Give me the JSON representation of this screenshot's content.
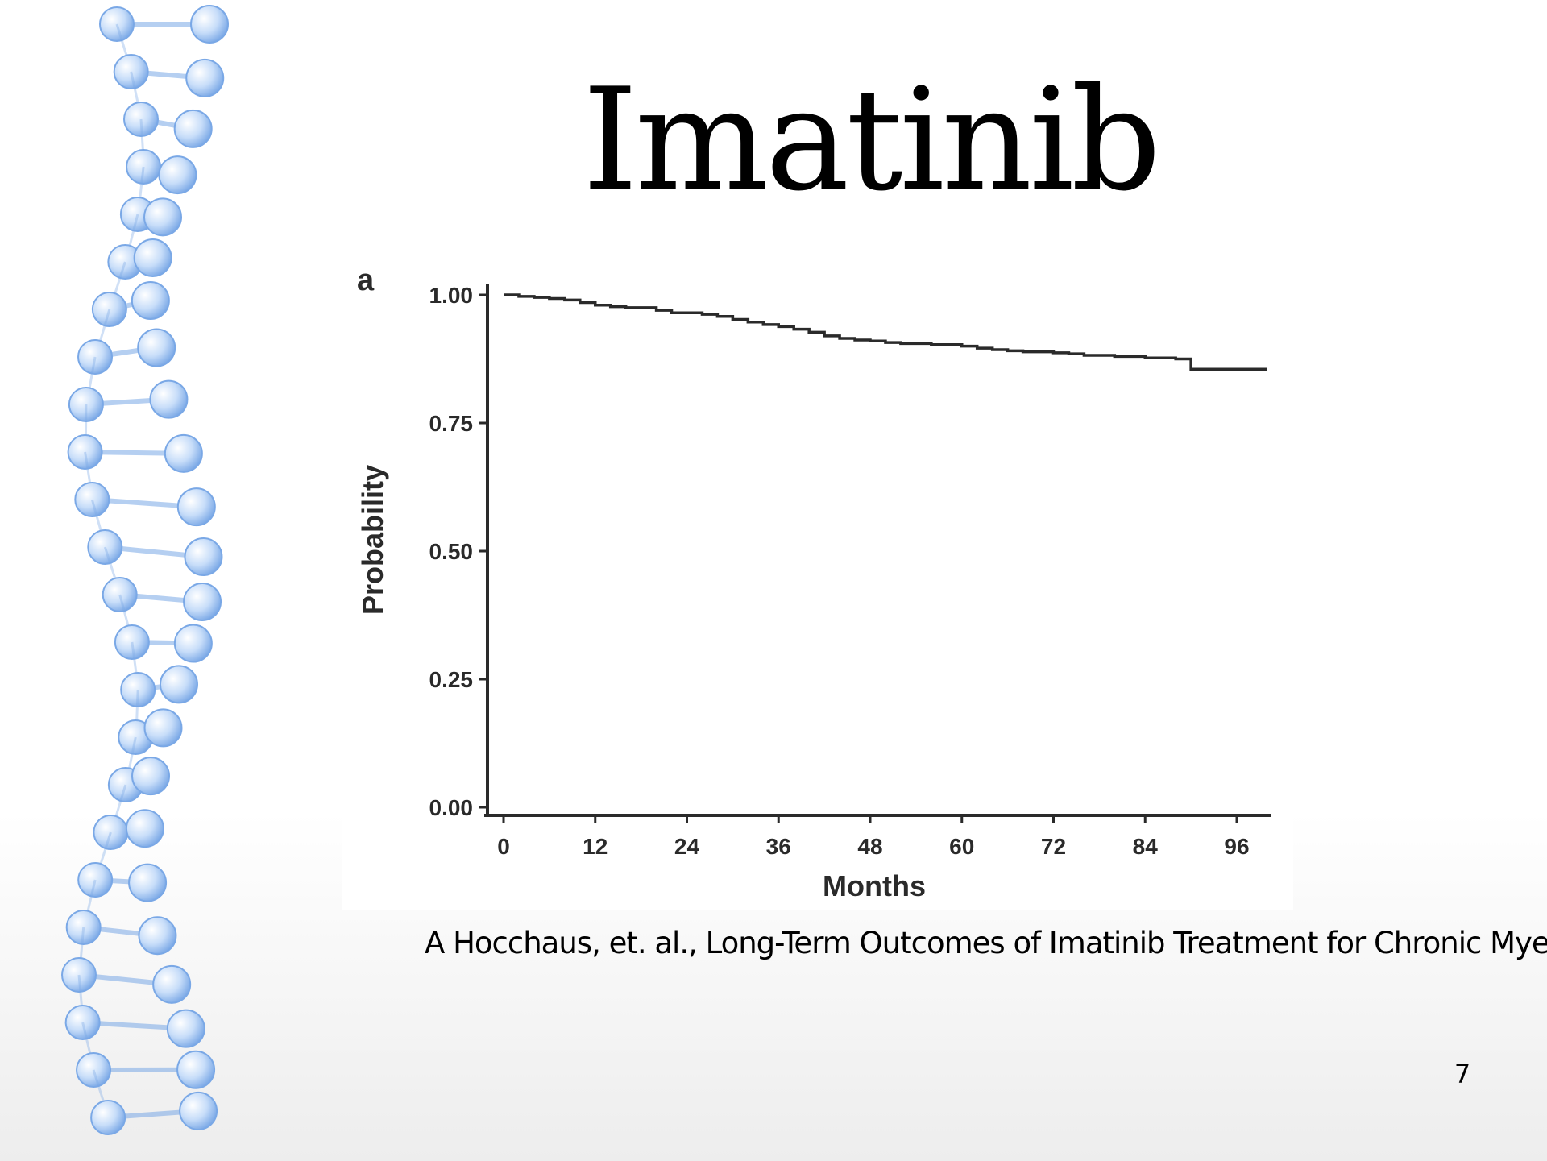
{
  "slide": {
    "title": "Imatinib",
    "citation": "A Hocchaus, et. al., Long-Term Outcomes of Imatinib Treatment for Chronic Myeloid Leukemia",
    "page_number": "7"
  },
  "colors": {
    "molecule_fill": "#c7ddf9",
    "molecule_stroke": "#7aa8e6",
    "curve": "#2a2a2a"
  },
  "chart_data": {
    "type": "line",
    "panel_label": "a",
    "xlabel": "Months",
    "ylabel": "Probability",
    "xlim": [
      0,
      100
    ],
    "ylim": [
      0,
      1
    ],
    "x_ticks": [
      0,
      12,
      24,
      36,
      48,
      60,
      72,
      84,
      96
    ],
    "y_ticks": [
      0.0,
      0.25,
      0.5,
      0.75,
      1.0
    ],
    "y_tick_labels": [
      "0.00",
      "0.25",
      "0.50",
      "0.75",
      "1.00"
    ],
    "grid": false,
    "series": [
      {
        "step": true,
        "x": [
          0,
          2,
          4,
          6,
          8,
          10,
          12,
          14,
          16,
          20,
          22,
          26,
          28,
          30,
          32,
          34,
          36,
          38,
          40,
          42,
          44,
          46,
          48,
          50,
          52,
          56,
          60,
          62,
          64,
          66,
          68,
          72,
          74,
          76,
          80,
          84,
          88,
          90,
          96,
          100
        ],
        "y": [
          1.0,
          0.997,
          0.995,
          0.993,
          0.99,
          0.985,
          0.98,
          0.977,
          0.975,
          0.97,
          0.965,
          0.962,
          0.958,
          0.952,
          0.947,
          0.942,
          0.938,
          0.933,
          0.927,
          0.92,
          0.915,
          0.912,
          0.91,
          0.907,
          0.905,
          0.903,
          0.9,
          0.896,
          0.893,
          0.891,
          0.889,
          0.887,
          0.885,
          0.882,
          0.88,
          0.877,
          0.875,
          0.855,
          0.855,
          0.855
        ]
      }
    ]
  }
}
